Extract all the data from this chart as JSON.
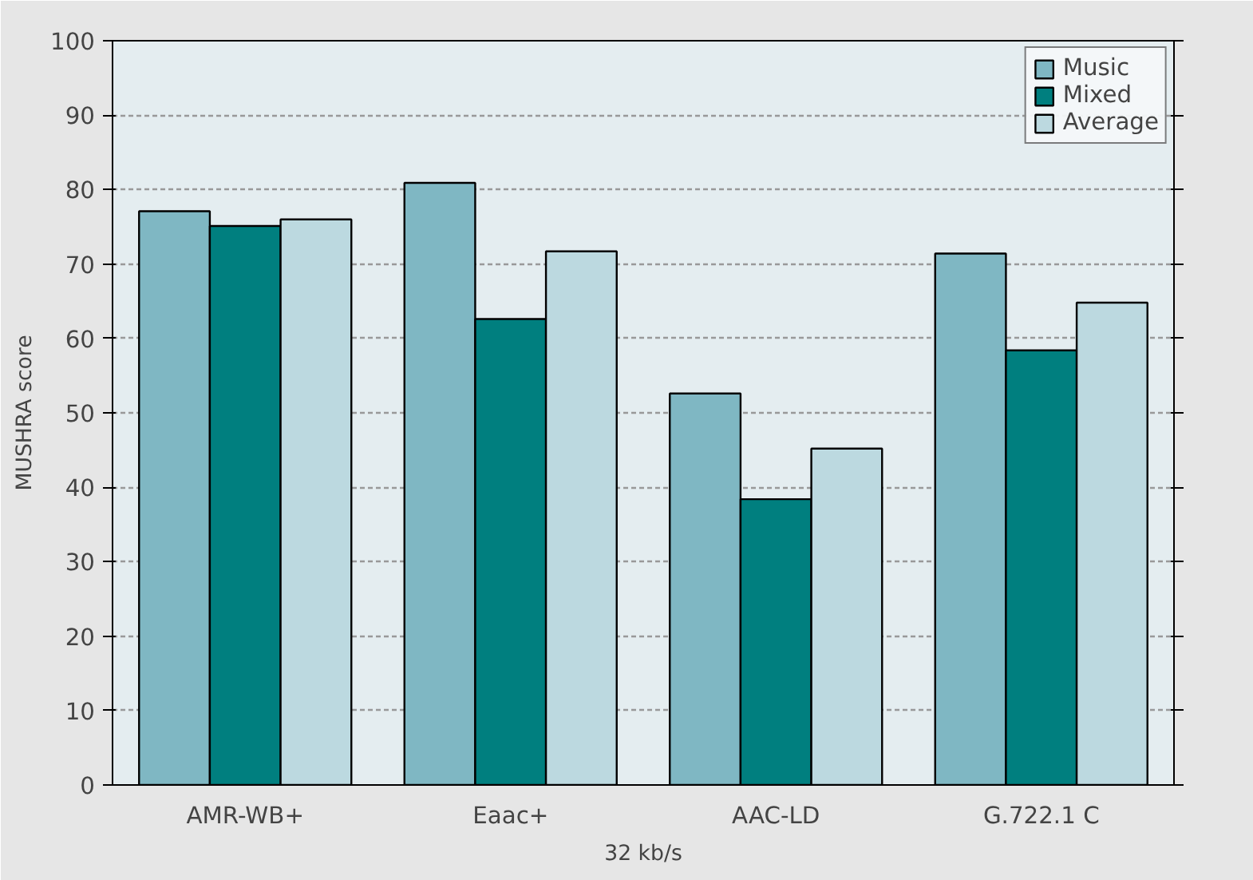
{
  "chart_data": {
    "type": "bar",
    "xlabel": "32 kb/s",
    "ylabel": "MUSHRA score",
    "categories": [
      "AMR-WB+",
      "Eaac+",
      "AAC-LD",
      "G.722.1 C"
    ],
    "series": [
      {
        "name": "Music",
        "color": "#7fb7c3",
        "values": [
          77.1,
          80.9,
          52.6,
          71.4
        ]
      },
      {
        "name": "Mixed",
        "color": "#007f7f",
        "values": [
          75.1,
          62.6,
          38.4,
          58.4
        ]
      },
      {
        "name": "Average",
        "color": "#bcd9e0",
        "values": [
          76.0,
          71.7,
          45.2,
          64.8
        ]
      }
    ],
    "ylim": [
      0,
      100
    ],
    "yticks": [
      0,
      10,
      20,
      30,
      40,
      50,
      60,
      70,
      80,
      90,
      100
    ],
    "grid": "y",
    "legend": "top right"
  }
}
